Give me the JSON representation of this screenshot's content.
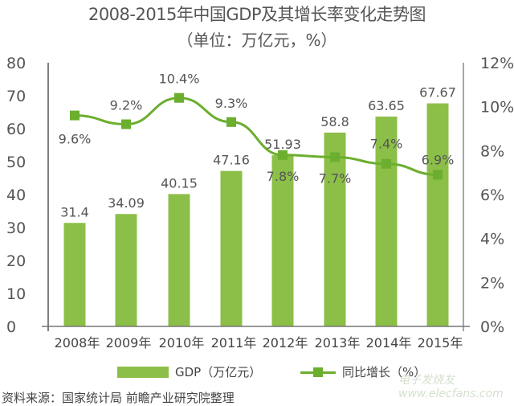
{
  "header": {
    "title": "2008-2015年中国GDP及其增长率变化走势图",
    "subtitle": "（单位：万亿元，%）"
  },
  "legend": {
    "bar_label": "GDP（万亿元）",
    "line_label": "同比增长（%）"
  },
  "footer": {
    "source": "资料来源：国家统计局 前瞻产业研究院整理",
    "watermark": "电子发烧友 www.elecfans.com"
  },
  "colors": {
    "bar": "#8cbf47",
    "line": "#6cae2e",
    "axis": "#666666",
    "text": "#555555"
  },
  "chart_data": {
    "type": "bar",
    "title": "2008-2015年中国GDP及其增长率变化走势图",
    "subtitle": "（单位：万亿元，%）",
    "categories": [
      "2008年",
      "2009年",
      "2010年",
      "2011年",
      "2012年",
      "2013年",
      "2014年",
      "2015年"
    ],
    "series": [
      {
        "name": "GDP（万亿元）",
        "type": "bar",
        "axis": "left",
        "values": [
          31.4,
          34.09,
          40.15,
          47.16,
          51.93,
          58.8,
          63.65,
          67.67
        ],
        "labels": [
          "31.4",
          "34.09",
          "40.15",
          "47.16",
          "51.93",
          "58.8",
          "63.65",
          "67.67"
        ]
      },
      {
        "name": "同比增长（%）",
        "type": "line",
        "axis": "right",
        "values": [
          9.6,
          9.2,
          10.4,
          9.3,
          7.8,
          7.7,
          7.4,
          6.9
        ],
        "labels": [
          "9.6%",
          "9.2%",
          "10.4%",
          "9.3%",
          "7.8%",
          "7.7%",
          "7.4%",
          "6.9%"
        ]
      }
    ],
    "y_left": {
      "ylim": [
        0,
        80
      ],
      "ticks": [
        "0",
        "10",
        "20",
        "30",
        "40",
        "50",
        "60",
        "70",
        "80"
      ]
    },
    "y_right": {
      "ylim": [
        0,
        12
      ],
      "ticks": [
        "0%",
        "2%",
        "4%",
        "6%",
        "8%",
        "10%",
        "12%"
      ]
    },
    "xlabel": "",
    "ylabel": "",
    "grid": false,
    "legend_position": "bottom"
  }
}
